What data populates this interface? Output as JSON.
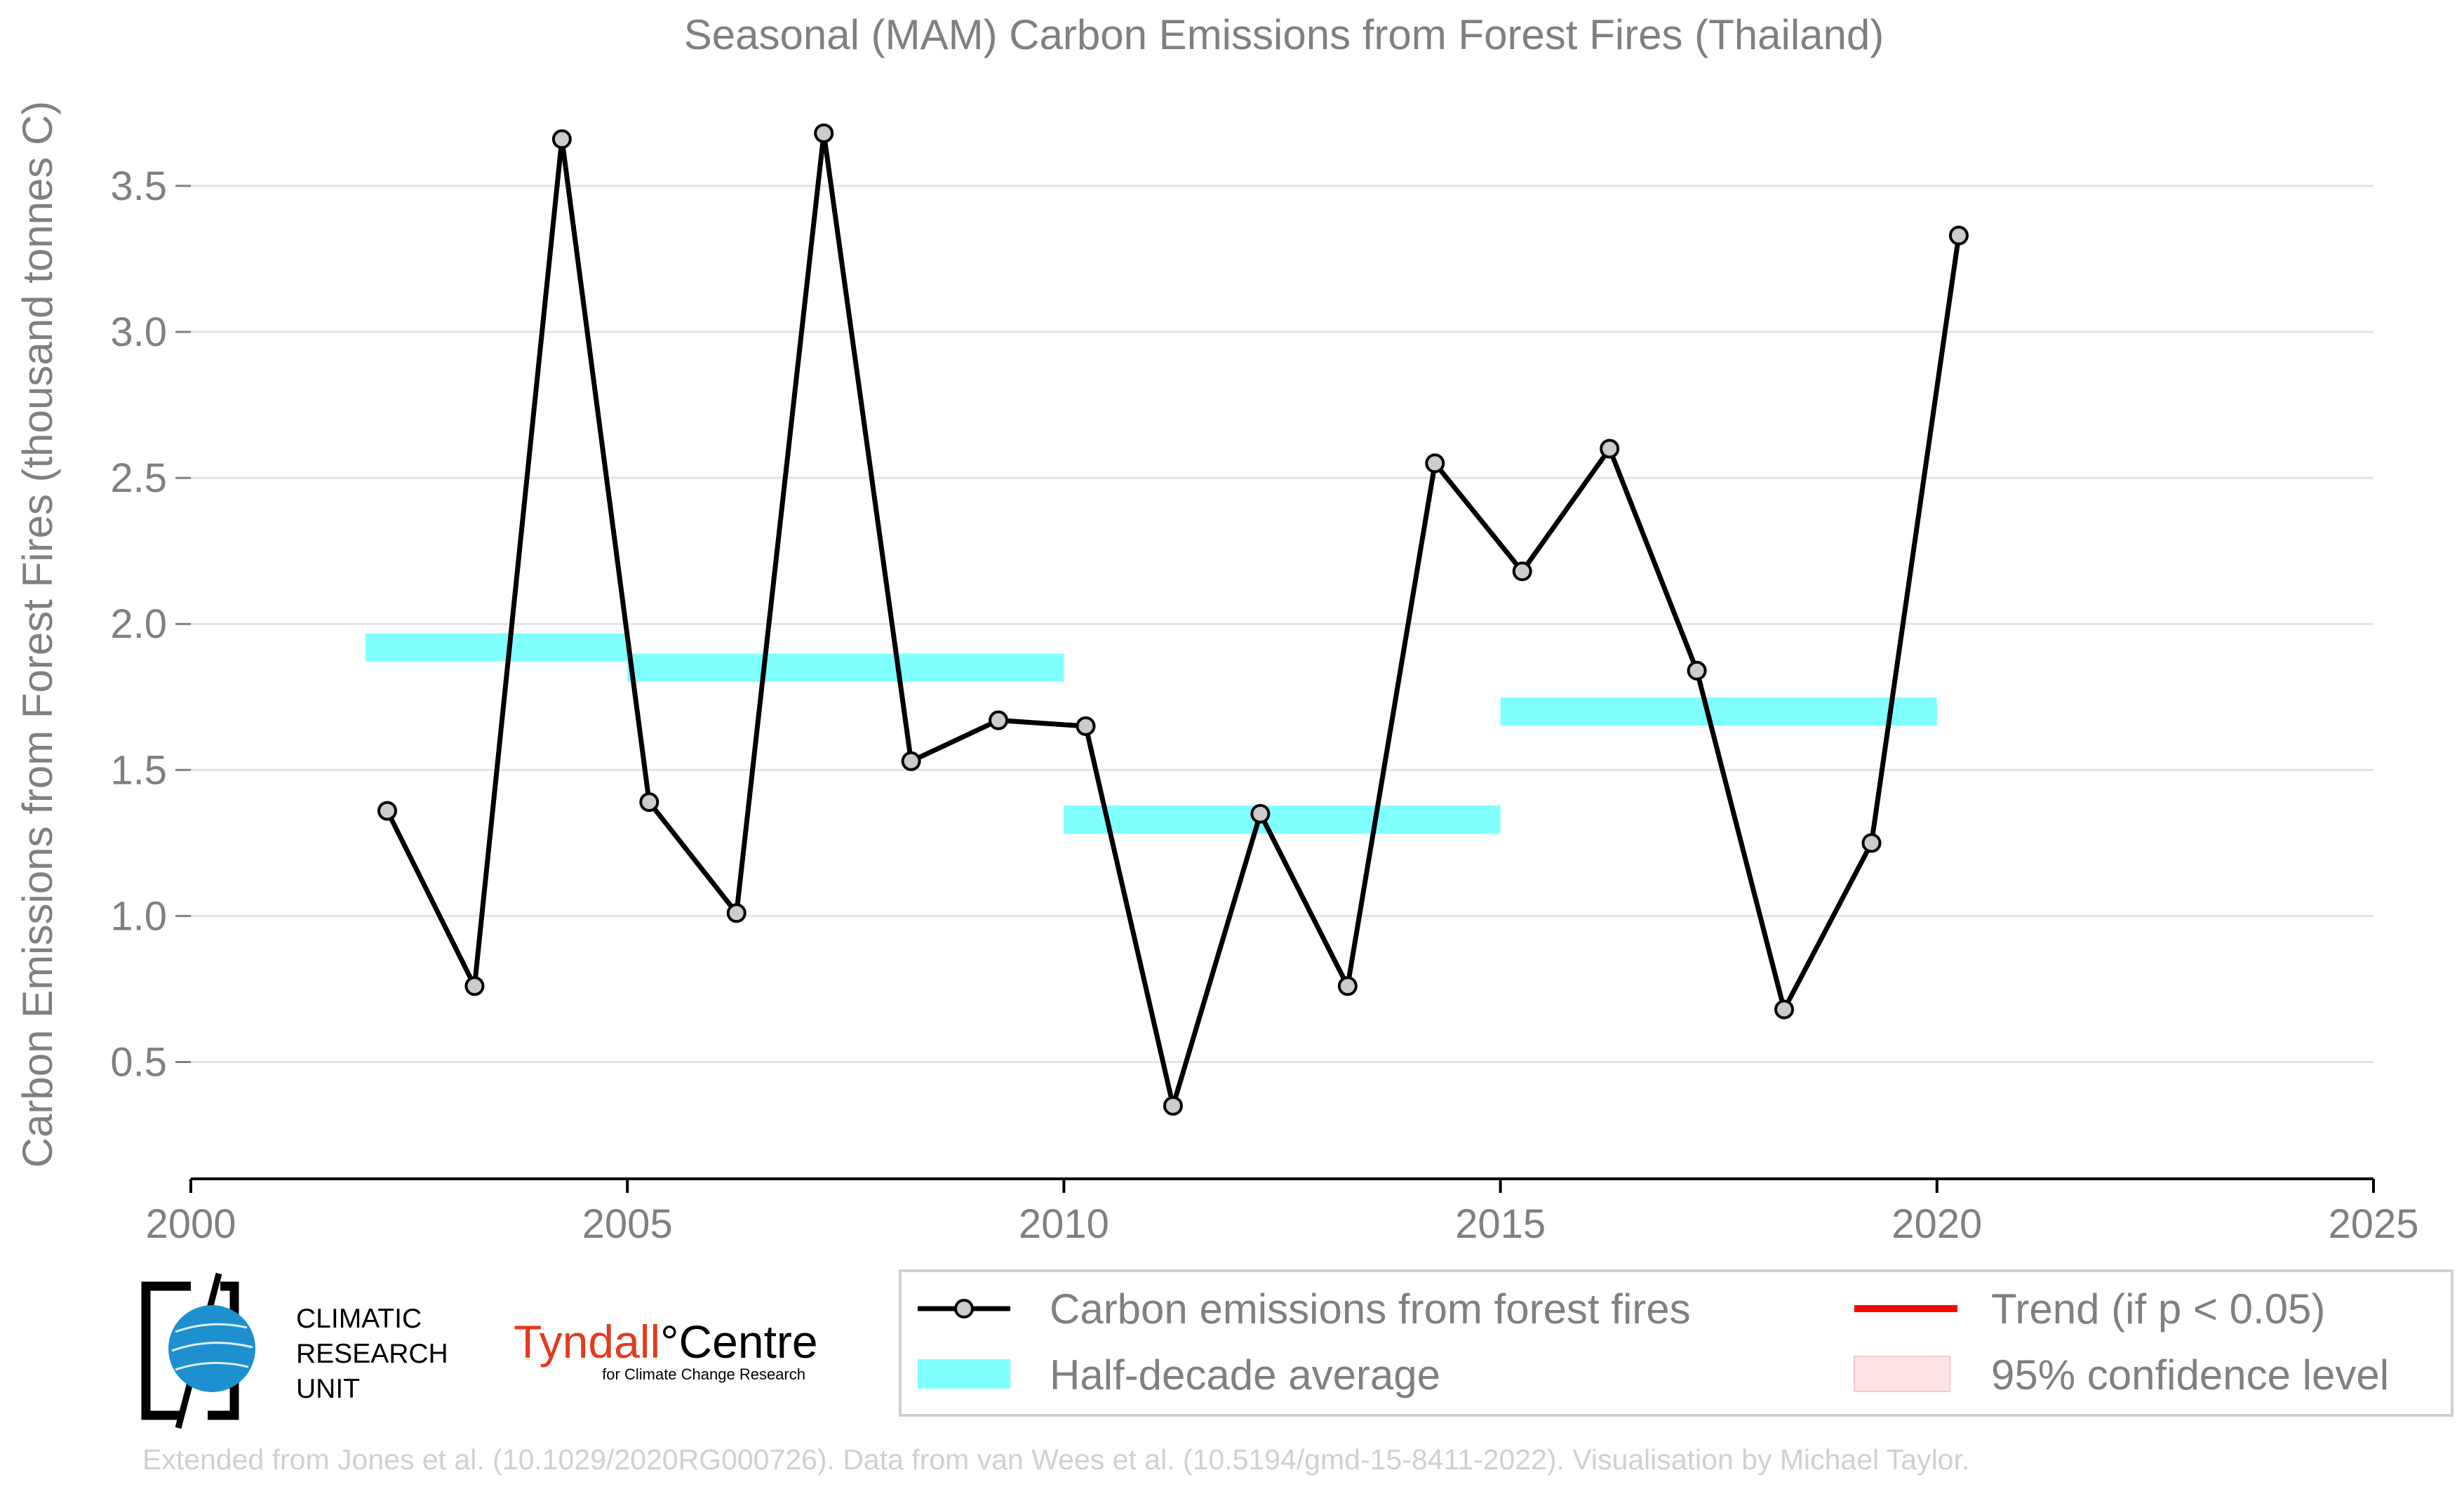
{
  "chart_data": {
    "type": "line",
    "title": "Seasonal (MAM) Carbon Emissions from Forest Fires (Thailand)",
    "xlabel": "",
    "ylabel": "Carbon Emissions from Forest Fires (thousand tonnes C)",
    "xlim": [
      2000,
      2025
    ],
    "ylim": [
      0.1,
      3.8
    ],
    "x_ticks": [
      2000,
      2005,
      2010,
      2015,
      2020,
      2025
    ],
    "y_ticks": [
      0.5,
      1.0,
      1.5,
      2.0,
      2.5,
      3.0,
      3.5
    ],
    "x_tick_labels": [
      "2000",
      "2005",
      "2010",
      "2015",
      "2020",
      "2025"
    ],
    "y_tick_labels": [
      "0.5",
      "1.0",
      "1.5",
      "2.0",
      "2.5",
      "3.0",
      "3.5"
    ],
    "grid": "horizontal",
    "legend_position": "bottom-right",
    "series": [
      {
        "name": "Carbon emissions from forest fires",
        "color": "#000000",
        "marker_color": "#cccccc",
        "x": [
          2002.25,
          2003.25,
          2004.25,
          2005.25,
          2006.25,
          2007.25,
          2008.25,
          2009.25,
          2010.25,
          2011.25,
          2012.25,
          2013.25,
          2014.25,
          2015.25,
          2016.25,
          2017.25,
          2018.25,
          2019.25,
          2020.25
        ],
        "values": [
          1.36,
          0.76,
          3.66,
          1.39,
          1.01,
          3.68,
          1.53,
          1.67,
          1.65,
          0.35,
          1.35,
          0.76,
          2.55,
          2.18,
          2.6,
          1.84,
          0.68,
          1.25,
          3.33
        ]
      }
    ],
    "half_decade_average": {
      "name": "Half-decade average",
      "color": "#80ffff",
      "segments": [
        {
          "x_start": 2002,
          "x_end": 2005,
          "value": 1.92
        },
        {
          "x_start": 2005,
          "x_end": 2010,
          "value": 1.85
        },
        {
          "x_start": 2010,
          "x_end": 2015,
          "value": 1.33
        },
        {
          "x_start": 2015,
          "x_end": 2020,
          "value": 1.7
        }
      ]
    },
    "legend": [
      {
        "label": "Carbon emissions from forest fires",
        "style": "line-marker",
        "color": "#000000"
      },
      {
        "label": "Trend (if p < 0.05)",
        "style": "line",
        "color": "#ff0000"
      },
      {
        "label": "Half-decade average",
        "style": "patch",
        "color": "#80ffff"
      },
      {
        "label": "95% confidence level",
        "style": "patch",
        "color": "#ffe4e6"
      }
    ]
  },
  "logos": {
    "cru": {
      "lines": [
        "CLIMATIC",
        "RESEARCH",
        "UNIT"
      ]
    },
    "tyndall": {
      "name": "Tyndall",
      "suffix": "°Centre",
      "tagline": "for Climate Change Research"
    }
  },
  "footer": {
    "credit": "Extended from Jones et al. (10.1029/2020RG000726). Data from van Wees et al. (10.5194/gmd-15-8411-2022). Visualisation by Michael Taylor."
  }
}
